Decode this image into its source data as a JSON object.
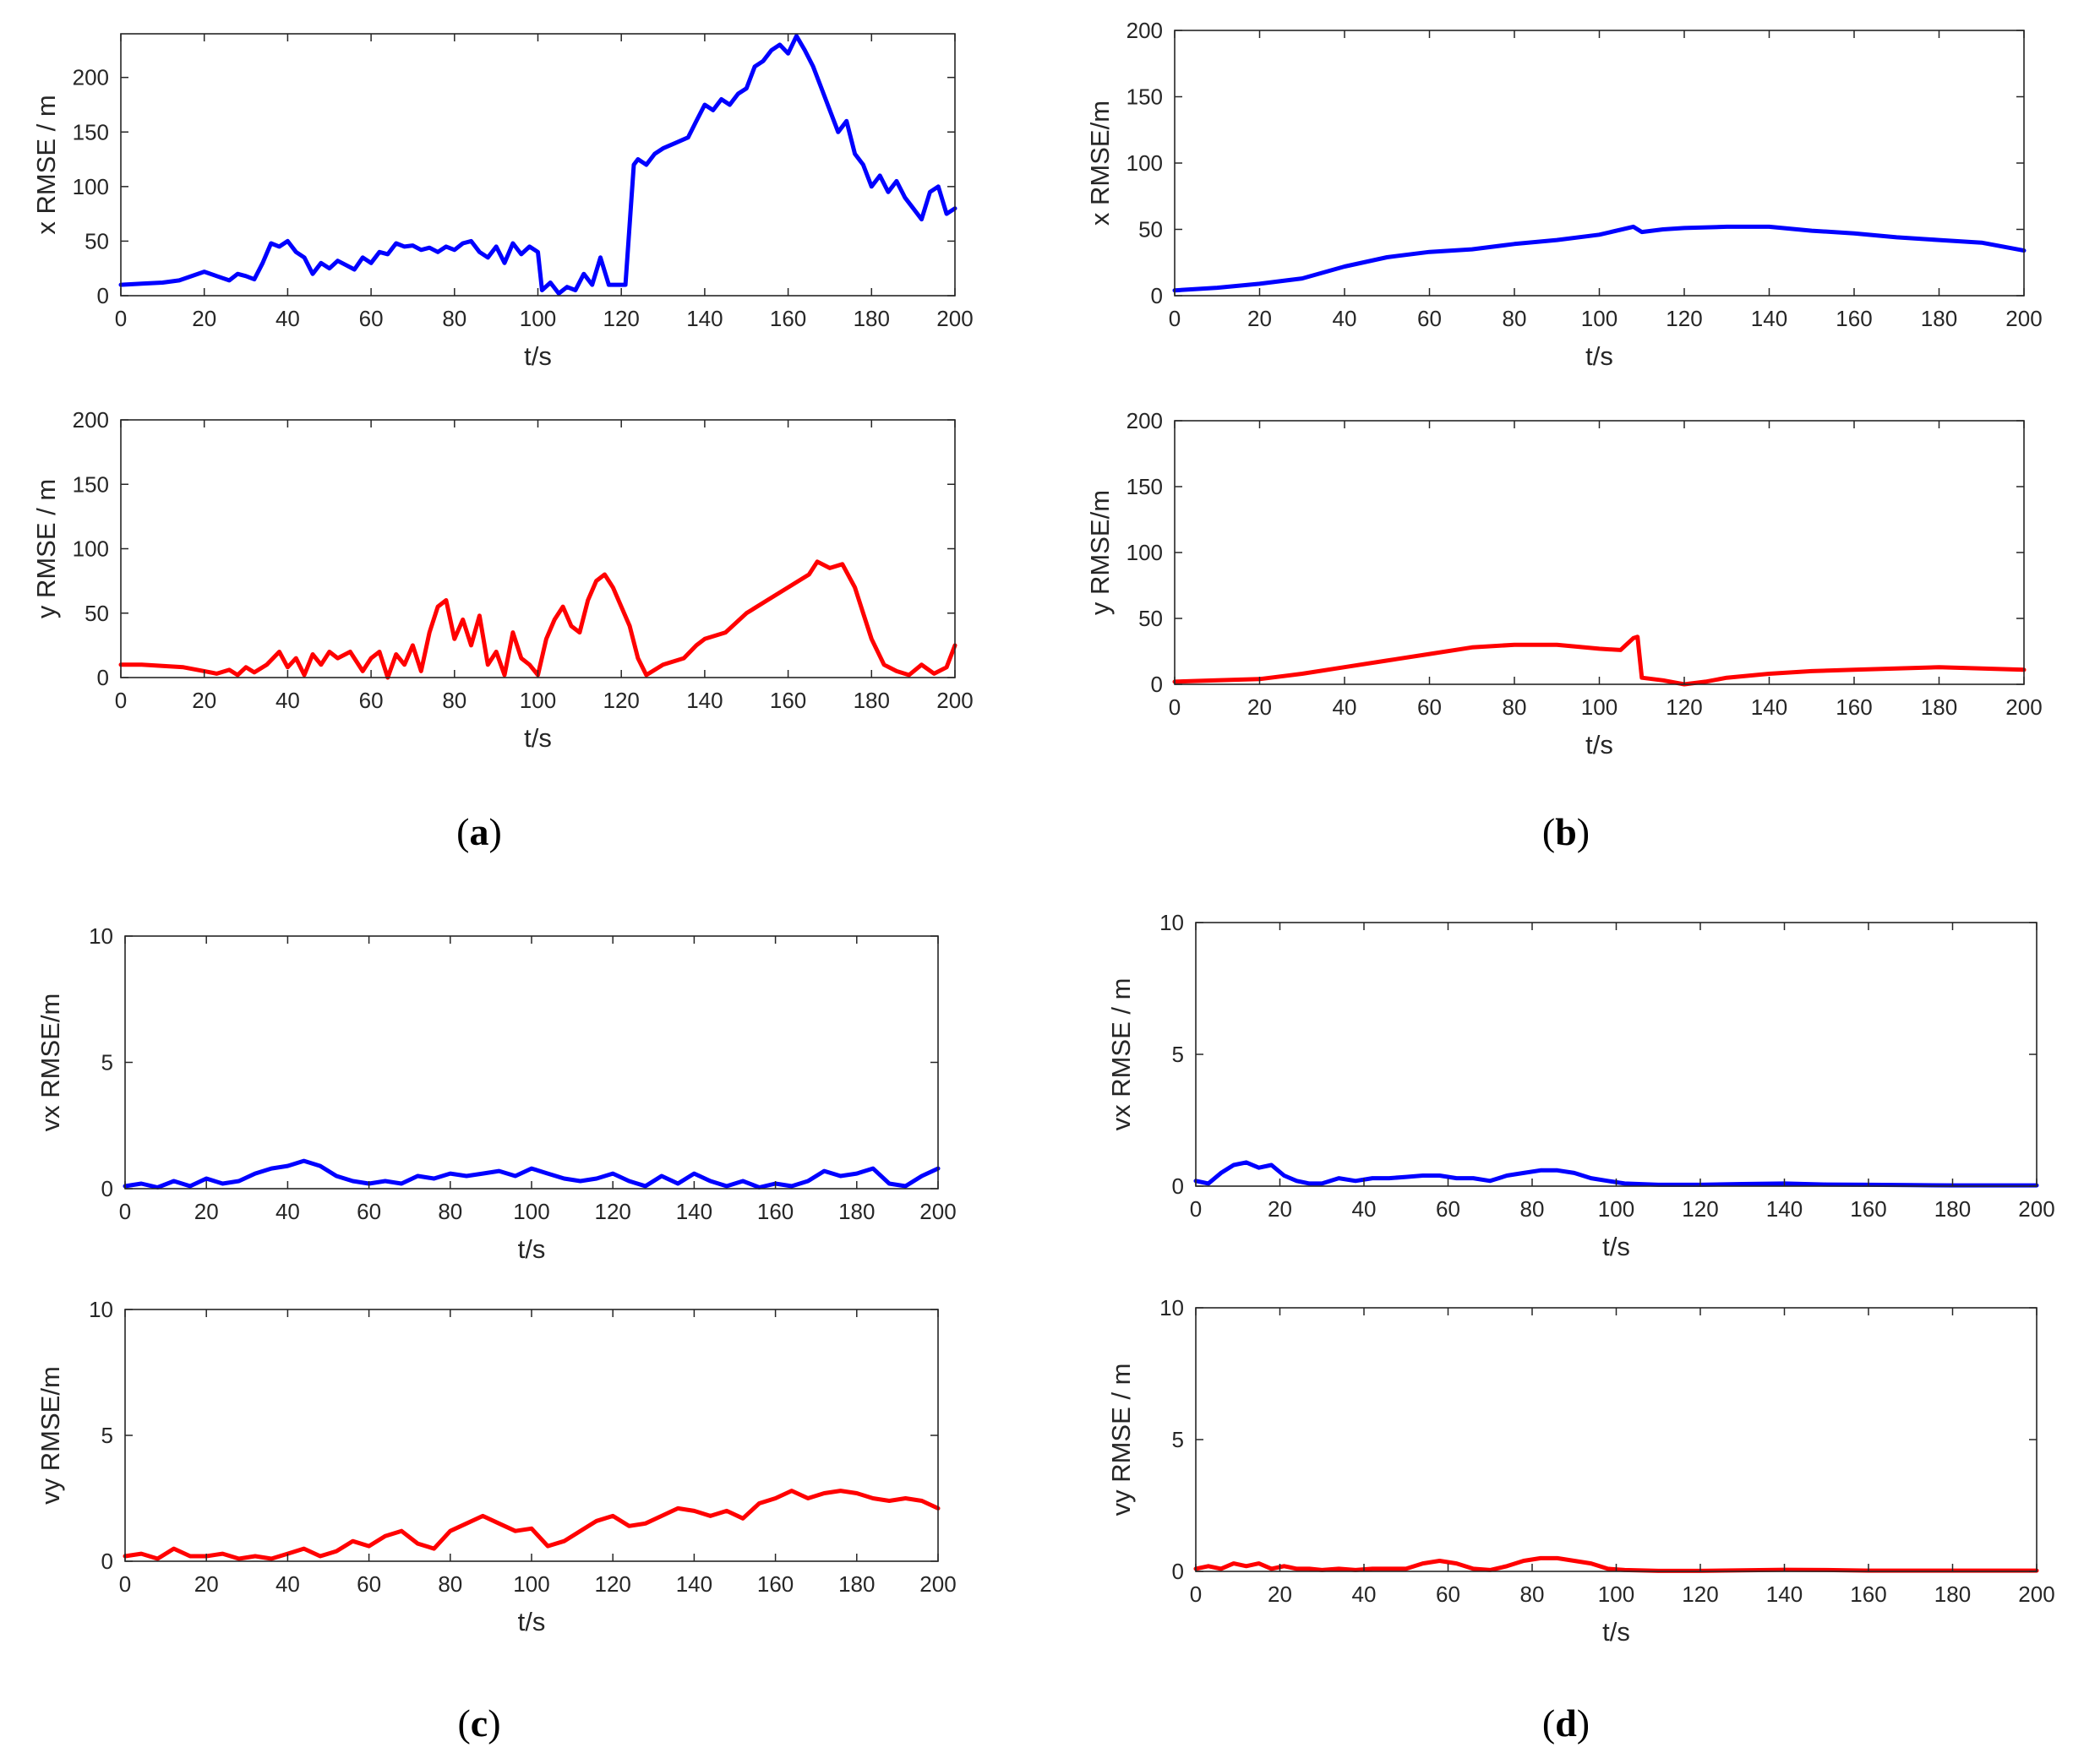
{
  "panel_labels": [
    {
      "id": "a",
      "open": "(",
      "letter": "a",
      "close": ")"
    },
    {
      "id": "b",
      "open": "(",
      "letter": "b",
      "close": ")"
    },
    {
      "id": "c",
      "open": "(",
      "letter": "c",
      "close": ")"
    },
    {
      "id": "d",
      "open": "(",
      "letter": "d",
      "close": ")"
    }
  ],
  "chart_data": [
    {
      "id": "a-x",
      "panel": "a",
      "type": "line",
      "xlabel": "t/s",
      "ylabel": "x RMSE / m",
      "xlim": [
        0,
        200
      ],
      "ylim": [
        0,
        240
      ],
      "xticks": [
        0,
        20,
        40,
        60,
        80,
        100,
        120,
        140,
        160,
        180,
        200
      ],
      "yticks": [
        0,
        50,
        100,
        150,
        200
      ],
      "series": [
        {
          "name": "x RMSE",
          "color": "#0000ff",
          "x": [
            0,
            5,
            10,
            14,
            17,
            20,
            23,
            26,
            28,
            30,
            32,
            34,
            36,
            38,
            40,
            42,
            44,
            46,
            48,
            50,
            52,
            54,
            56,
            58,
            60,
            62,
            64,
            66,
            68,
            70,
            72,
            74,
            76,
            78,
            80,
            82,
            84,
            86,
            88,
            90,
            92,
            94,
            96,
            98,
            100,
            101,
            103,
            105,
            107,
            109,
            111,
            113,
            115,
            117,
            119,
            121,
            123,
            124,
            126,
            128,
            130,
            133,
            136,
            138,
            140,
            142,
            144,
            146,
            148,
            150,
            152,
            154,
            156,
            158,
            160,
            162,
            164,
            166,
            168,
            170,
            172,
            174,
            176,
            178,
            180,
            182,
            184,
            186,
            188,
            190,
            192,
            194,
            196,
            198,
            200
          ],
          "y": [
            10,
            11,
            12,
            14,
            18,
            22,
            18,
            14,
            20,
            18,
            15,
            30,
            48,
            45,
            50,
            40,
            35,
            20,
            30,
            25,
            32,
            28,
            24,
            35,
            30,
            40,
            38,
            48,
            45,
            46,
            42,
            44,
            40,
            45,
            42,
            48,
            50,
            40,
            35,
            45,
            30,
            48,
            38,
            45,
            40,
            5,
            12,
            2,
            8,
            5,
            20,
            10,
            35,
            10,
            10,
            10,
            120,
            125,
            120,
            130,
            135,
            140,
            145,
            160,
            175,
            170,
            180,
            175,
            185,
            190,
            210,
            215,
            225,
            230,
            222,
            238,
            225,
            210,
            190,
            170,
            150,
            160,
            130,
            120,
            100,
            110,
            95,
            105,
            90,
            80,
            70,
            95,
            100,
            75,
            80
          ]
        }
      ]
    },
    {
      "id": "a-y",
      "panel": "a",
      "type": "line",
      "xlabel": "t/s",
      "ylabel": "y RMSE / m",
      "xlim": [
        0,
        200
      ],
      "ylim": [
        0,
        200
      ],
      "xticks": [
        0,
        20,
        40,
        60,
        80,
        100,
        120,
        140,
        160,
        180,
        200
      ],
      "yticks": [
        0,
        50,
        100,
        150,
        200
      ],
      "series": [
        {
          "name": "y RMSE",
          "color": "#ff0000",
          "x": [
            0,
            5,
            10,
            15,
            20,
            23,
            26,
            28,
            30,
            32,
            35,
            38,
            40,
            42,
            44,
            46,
            48,
            50,
            52,
            55,
            58,
            60,
            62,
            64,
            66,
            68,
            70,
            72,
            74,
            76,
            78,
            80,
            82,
            84,
            86,
            88,
            90,
            92,
            94,
            96,
            98,
            100,
            102,
            104,
            106,
            108,
            110,
            112,
            114,
            116,
            118,
            120,
            122,
            124,
            126,
            130,
            135,
            138,
            140,
            145,
            150,
            155,
            160,
            165,
            167,
            170,
            173,
            176,
            178,
            180,
            183,
            186,
            189,
            192,
            195,
            198,
            200
          ],
          "y": [
            10,
            10,
            9,
            8,
            5,
            3,
            6,
            2,
            8,
            4,
            10,
            20,
            8,
            15,
            2,
            18,
            10,
            20,
            15,
            20,
            5,
            15,
            20,
            0,
            18,
            10,
            25,
            5,
            35,
            55,
            60,
            30,
            45,
            25,
            48,
            10,
            20,
            2,
            35,
            15,
            10,
            2,
            30,
            45,
            55,
            40,
            35,
            60,
            75,
            80,
            70,
            55,
            40,
            15,
            2,
            10,
            15,
            25,
            30,
            35,
            50,
            60,
            70,
            80,
            90,
            85,
            88,
            70,
            50,
            30,
            10,
            5,
            2,
            10,
            3,
            8,
            25
          ]
        }
      ]
    },
    {
      "id": "b-x",
      "panel": "b",
      "type": "line",
      "xlabel": "t/s",
      "ylabel": "x RMSE/m",
      "xlim": [
        0,
        200
      ],
      "ylim": [
        0,
        200
      ],
      "xticks": [
        0,
        20,
        40,
        60,
        80,
        100,
        120,
        140,
        160,
        180,
        200
      ],
      "yticks": [
        0,
        50,
        100,
        150,
        200
      ],
      "series": [
        {
          "name": "x RMSE",
          "color": "#0000ff",
          "x": [
            0,
            10,
            20,
            30,
            40,
            50,
            60,
            70,
            80,
            90,
            100,
            108,
            110,
            115,
            120,
            130,
            140,
            150,
            160,
            170,
            180,
            190,
            200
          ],
          "y": [
            4,
            6,
            9,
            13,
            22,
            29,
            33,
            35,
            39,
            42,
            46,
            52,
            48,
            50,
            51,
            52,
            52,
            49,
            47,
            44,
            42,
            40,
            34
          ]
        }
      ]
    },
    {
      "id": "b-y",
      "panel": "b",
      "type": "line",
      "xlabel": "t/s",
      "ylabel": "y RMSE/m",
      "xlim": [
        0,
        200
      ],
      "ylim": [
        0,
        200
      ],
      "xticks": [
        0,
        20,
        40,
        60,
        80,
        100,
        120,
        140,
        160,
        180,
        200
      ],
      "yticks": [
        0,
        50,
        100,
        150,
        200
      ],
      "series": [
        {
          "name": "y RMSE",
          "color": "#ff0000",
          "x": [
            0,
            10,
            20,
            30,
            40,
            50,
            60,
            70,
            80,
            90,
            100,
            105,
            108,
            109,
            110,
            115,
            120,
            125,
            130,
            140,
            150,
            160,
            170,
            180,
            190,
            200
          ],
          "y": [
            2,
            3,
            4,
            8,
            13,
            18,
            23,
            28,
            30,
            30,
            27,
            26,
            35,
            36,
            5,
            3,
            0,
            2,
            5,
            8,
            10,
            11,
            12,
            13,
            12,
            11
          ]
        }
      ]
    },
    {
      "id": "c-vx",
      "panel": "c",
      "type": "line",
      "xlabel": "t/s",
      "ylabel": "vx RMSE/m",
      "xlim": [
        0,
        200
      ],
      "ylim": [
        0,
        10
      ],
      "xticks": [
        0,
        20,
        40,
        60,
        80,
        100,
        120,
        140,
        160,
        180,
        200
      ],
      "yticks": [
        0,
        5,
        10
      ],
      "series": [
        {
          "name": "vx RMSE",
          "color": "#0000ff",
          "x": [
            0,
            4,
            8,
            12,
            16,
            20,
            24,
            28,
            32,
            36,
            40,
            44,
            48,
            52,
            56,
            60,
            64,
            68,
            72,
            76,
            80,
            84,
            88,
            92,
            96,
            100,
            104,
            108,
            112,
            116,
            120,
            124,
            128,
            132,
            136,
            140,
            144,
            148,
            152,
            156,
            160,
            164,
            168,
            172,
            176,
            180,
            184,
            188,
            192,
            196,
            200
          ],
          "y": [
            0.1,
            0.2,
            0.05,
            0.3,
            0.1,
            0.4,
            0.2,
            0.3,
            0.6,
            0.8,
            0.9,
            1.1,
            0.9,
            0.5,
            0.3,
            0.2,
            0.3,
            0.2,
            0.5,
            0.4,
            0.6,
            0.5,
            0.6,
            0.7,
            0.5,
            0.8,
            0.6,
            0.4,
            0.3,
            0.4,
            0.6,
            0.3,
            0.1,
            0.5,
            0.2,
            0.6,
            0.3,
            0.1,
            0.3,
            0.05,
            0.2,
            0.1,
            0.3,
            0.7,
            0.5,
            0.6,
            0.8,
            0.2,
            0.1,
            0.5,
            0.8
          ]
        }
      ]
    },
    {
      "id": "c-vy",
      "panel": "c",
      "type": "line",
      "xlabel": "t/s",
      "ylabel": "vy RMSE/m",
      "xlim": [
        0,
        200
      ],
      "ylim": [
        0,
        10
      ],
      "xticks": [
        0,
        20,
        40,
        60,
        80,
        100,
        120,
        140,
        160,
        180,
        200
      ],
      "yticks": [
        0,
        5,
        10
      ],
      "series": [
        {
          "name": "vy RMSE",
          "color": "#ff0000",
          "x": [
            0,
            4,
            8,
            12,
            16,
            20,
            24,
            28,
            32,
            36,
            40,
            44,
            48,
            52,
            56,
            60,
            64,
            68,
            72,
            76,
            80,
            84,
            88,
            92,
            96,
            100,
            104,
            108,
            112,
            116,
            120,
            124,
            128,
            132,
            136,
            140,
            144,
            148,
            152,
            156,
            160,
            164,
            168,
            172,
            176,
            180,
            184,
            188,
            192,
            196,
            200
          ],
          "y": [
            0.2,
            0.3,
            0.1,
            0.5,
            0.2,
            0.2,
            0.3,
            0.1,
            0.2,
            0.1,
            0.3,
            0.5,
            0.2,
            0.4,
            0.8,
            0.6,
            1.0,
            1.2,
            0.7,
            0.5,
            1.2,
            1.5,
            1.8,
            1.5,
            1.2,
            1.3,
            0.6,
            0.8,
            1.2,
            1.6,
            1.8,
            1.4,
            1.5,
            1.8,
            2.1,
            2.0,
            1.8,
            2.0,
            1.7,
            2.3,
            2.5,
            2.8,
            2.5,
            2.7,
            2.8,
            2.7,
            2.5,
            2.4,
            2.5,
            2.4,
            2.1
          ]
        }
      ]
    },
    {
      "id": "d-vx",
      "panel": "d",
      "type": "line",
      "xlabel": "t/s",
      "ylabel": "vx RMSE / m",
      "xlim": [
        0,
        200
      ],
      "ylim": [
        0,
        10
      ],
      "xticks": [
        0,
        20,
        40,
        60,
        80,
        100,
        120,
        140,
        160,
        180,
        200
      ],
      "yticks": [
        0,
        5,
        10
      ],
      "series": [
        {
          "name": "vx RMSE",
          "color": "#0000ff",
          "x": [
            0,
            3,
            6,
            9,
            12,
            15,
            18,
            21,
            24,
            27,
            30,
            34,
            38,
            42,
            46,
            50,
            54,
            58,
            62,
            66,
            70,
            74,
            78,
            82,
            86,
            90,
            94,
            98,
            102,
            110,
            120,
            130,
            140,
            150,
            160,
            170,
            180,
            190,
            200
          ],
          "y": [
            0.2,
            0.1,
            0.5,
            0.8,
            0.9,
            0.7,
            0.8,
            0.4,
            0.2,
            0.1,
            0.1,
            0.3,
            0.2,
            0.3,
            0.3,
            0.35,
            0.4,
            0.4,
            0.3,
            0.3,
            0.2,
            0.4,
            0.5,
            0.6,
            0.6,
            0.5,
            0.3,
            0.2,
            0.1,
            0.05,
            0.05,
            0.08,
            0.1,
            0.06,
            0.05,
            0.04,
            0.03,
            0.03,
            0.03
          ]
        }
      ]
    },
    {
      "id": "d-vy",
      "panel": "d",
      "type": "line",
      "xlabel": "t/s",
      "ylabel": "vy RMSE / m",
      "xlim": [
        0,
        200
      ],
      "ylim": [
        0,
        10
      ],
      "xticks": [
        0,
        20,
        40,
        60,
        80,
        100,
        120,
        140,
        160,
        180,
        200
      ],
      "yticks": [
        0,
        5,
        10
      ],
      "series": [
        {
          "name": "vy RMSE",
          "color": "#ff0000",
          "x": [
            0,
            3,
            6,
            9,
            12,
            15,
            18,
            21,
            24,
            27,
            30,
            34,
            38,
            42,
            46,
            50,
            54,
            58,
            62,
            66,
            70,
            74,
            78,
            82,
            86,
            90,
            94,
            98,
            102,
            110,
            120,
            130,
            140,
            150,
            160,
            170,
            180,
            190,
            200
          ],
          "y": [
            0.1,
            0.2,
            0.1,
            0.3,
            0.2,
            0.3,
            0.1,
            0.2,
            0.1,
            0.1,
            0.05,
            0.1,
            0.05,
            0.1,
            0.1,
            0.1,
            0.3,
            0.4,
            0.3,
            0.1,
            0.05,
            0.2,
            0.4,
            0.5,
            0.5,
            0.4,
            0.3,
            0.1,
            0.05,
            0.02,
            0.02,
            0.04,
            0.06,
            0.05,
            0.03,
            0.03,
            0.03,
            0.03,
            0.03
          ]
        }
      ]
    }
  ]
}
